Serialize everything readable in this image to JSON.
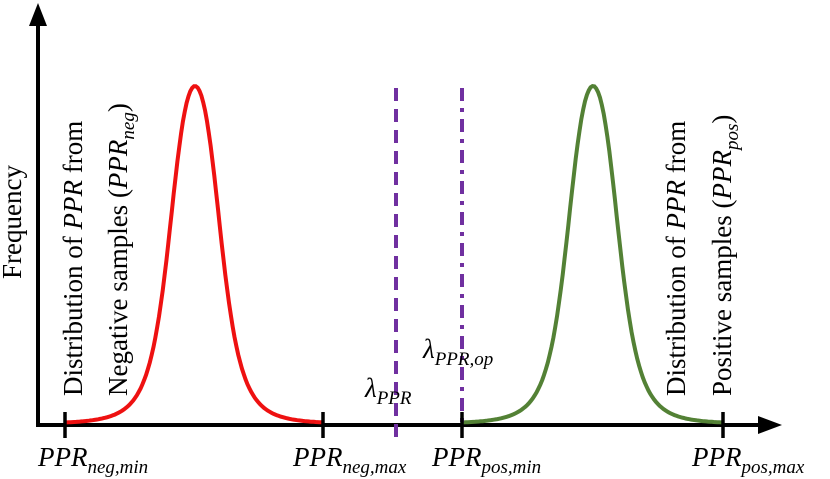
{
  "axes": {
    "ylabel": "Frequency"
  },
  "ticks": {
    "neg_min": {
      "main": "PPR",
      "sub": "neg,min"
    },
    "neg_max": {
      "main": "PPR",
      "sub": "neg,max"
    },
    "pos_min": {
      "main": "PPR",
      "sub": "pos,min"
    },
    "pos_max": {
      "main": "PPR",
      "sub": "pos,max"
    }
  },
  "thresholds": {
    "lambda_ppr": {
      "symbol": "λ",
      "sub": "PPR"
    },
    "lambda_ppr_op": {
      "symbol": "λ",
      "sub": "PPR,op"
    }
  },
  "negative_distribution": {
    "line1_a": "Distribution of ",
    "line1_b": "PPR",
    "line1_c": " from",
    "line2_a": "Negative samples (",
    "line2_b": "PPR",
    "line2_sub": "neg",
    "line2_c": ")"
  },
  "positive_distribution": {
    "line1_a": "Distribution of ",
    "line1_b": "PPR",
    "line1_c": " from",
    "line2_a": "Positive samples (",
    "line2_b": "PPR",
    "line2_sub": "pos",
    "line2_c": ")"
  },
  "colors": {
    "negative": "#ee1111",
    "positive": "#538135",
    "threshold": "#7030a0",
    "axis": "#000000"
  }
}
